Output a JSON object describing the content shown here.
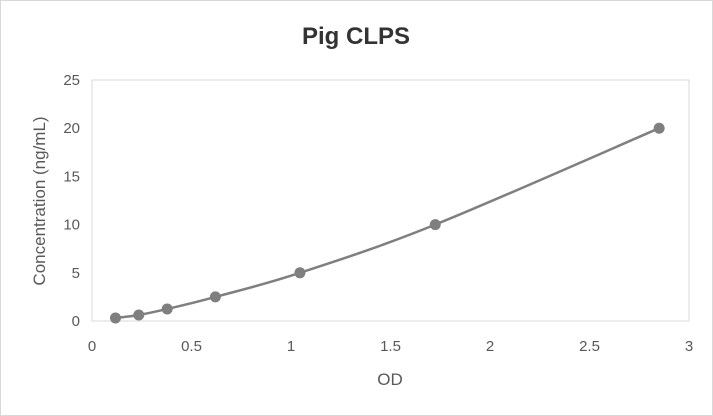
{
  "chart_data": {
    "type": "scatter",
    "title": "Pig CLPS",
    "xlabel": "OD",
    "ylabel": "Concentration (ng/mL)",
    "xlim": [
      0,
      3
    ],
    "ylim": [
      0,
      25
    ],
    "x_ticks": [
      "0",
      "0.5",
      "1",
      "1.5",
      "2",
      "2.5",
      "3"
    ],
    "y_ticks": [
      "0",
      "5",
      "10",
      "15",
      "20",
      "25"
    ],
    "grid": false,
    "legend": "none",
    "smooth_line": true,
    "series": [
      {
        "x": [
          0.118,
          0.235,
          0.378,
          0.62,
          1.045,
          1.725,
          2.85
        ],
        "y": [
          0.3125,
          0.625,
          1.25,
          2.5,
          5,
          10,
          20
        ]
      }
    ],
    "colors": {
      "series": "#7f7f7f",
      "axis": "#d9d9d9",
      "text": "#595959",
      "title": "#333333"
    }
  }
}
